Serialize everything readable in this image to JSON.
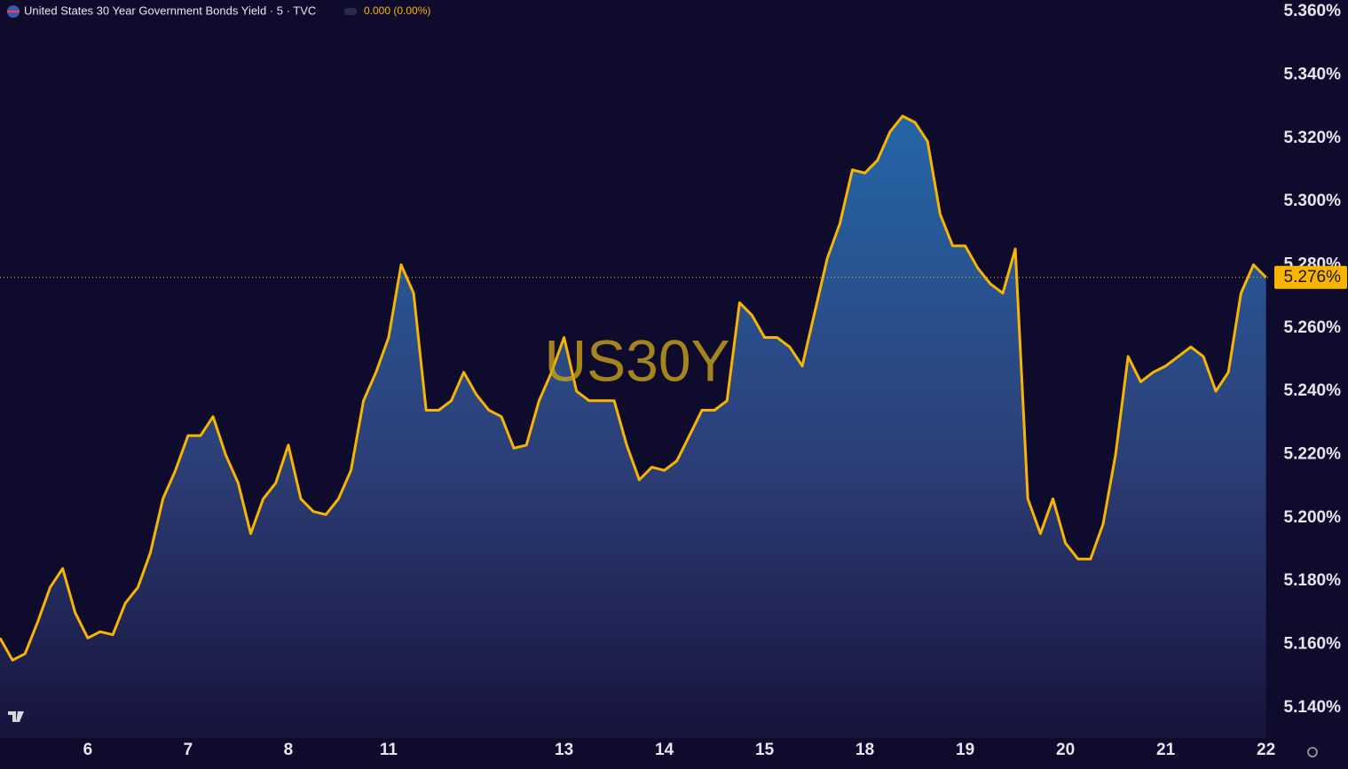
{
  "chart_data": {
    "type": "area",
    "title": "United States 30 Year Government Bonds Yield · 5 · TVC",
    "change": "0.000 (0.00%)",
    "watermark": "US30Y",
    "color": "#f7b500",
    "categories": [
      null,
      null,
      null,
      null,
      null,
      null,
      null,
      "6",
      null,
      null,
      null,
      null,
      null,
      null,
      null,
      "7",
      null,
      null,
      null,
      null,
      null,
      null,
      null,
      "8",
      null,
      null,
      null,
      null,
      null,
      null,
      null,
      "11",
      null,
      null,
      null,
      null,
      null,
      null,
      null,
      null,
      null,
      null,
      null,
      null,
      null,
      "13",
      null,
      null,
      null,
      null,
      null,
      null,
      null,
      "14",
      null,
      null,
      null,
      null,
      null,
      null,
      null,
      "15",
      null,
      null,
      null,
      null,
      null,
      null,
      null,
      "18",
      null,
      null,
      null,
      null,
      null,
      null,
      null,
      "19",
      null,
      null,
      null,
      null,
      null,
      null,
      null,
      "20",
      null,
      null,
      null,
      null,
      null,
      null,
      null,
      "21",
      null,
      null,
      null,
      null,
      null,
      null,
      null,
      "22"
    ],
    "values": [
      5.162,
      5.155,
      5.157,
      5.167,
      5.178,
      5.184,
      5.17,
      5.162,
      5.164,
      5.163,
      5.173,
      5.178,
      5.189,
      5.206,
      5.215,
      5.226,
      5.226,
      5.232,
      5.22,
      5.211,
      5.195,
      5.206,
      5.211,
      5.223,
      5.206,
      5.202,
      5.201,
      5.206,
      5.215,
      5.237,
      5.246,
      5.257,
      5.28,
      5.271,
      5.234,
      5.234,
      5.237,
      5.246,
      5.239,
      5.234,
      5.232,
      5.222,
      5.223,
      5.237,
      5.246,
      5.257,
      5.24,
      5.237,
      5.237,
      5.237,
      5.223,
      5.212,
      5.216,
      5.215,
      5.218,
      5.226,
      5.234,
      5.234,
      5.237,
      5.268,
      5.264,
      5.257,
      5.257,
      5.254,
      5.248,
      5.265,
      5.282,
      5.293,
      5.31,
      5.309,
      5.313,
      5.322,
      5.327,
      5.325,
      5.319,
      5.296,
      5.286,
      5.286,
      5.279,
      5.274,
      5.271,
      5.285,
      5.206,
      5.195,
      5.206,
      5.192,
      5.187,
      5.187,
      5.198,
      5.22,
      5.251,
      5.243,
      5.246,
      5.248,
      5.251,
      5.254,
      5.251,
      5.24,
      5.246,
      5.271,
      5.28,
      5.276
    ],
    "last_value": 5.276,
    "last_value_label": "5.276%",
    "ylim": [
      5.1304,
      5.3637
    ],
    "yticks": [
      {
        "value": 5.14,
        "label": "5.140%"
      },
      {
        "value": 5.16,
        "label": "5.160%"
      },
      {
        "value": 5.18,
        "label": "5.180%"
      },
      {
        "value": 5.2,
        "label": "5.200%"
      },
      {
        "value": 5.22,
        "label": "5.220%"
      },
      {
        "value": 5.24,
        "label": "5.240%"
      },
      {
        "value": 5.26,
        "label": "5.260%"
      },
      {
        "value": 5.28,
        "label": "5.280%"
      },
      {
        "value": 5.3,
        "label": "5.300%"
      },
      {
        "value": 5.32,
        "label": "5.320%"
      },
      {
        "value": 5.34,
        "label": "5.340%"
      },
      {
        "value": 5.36,
        "label": "5.360%"
      }
    ],
    "grid": false
  }
}
